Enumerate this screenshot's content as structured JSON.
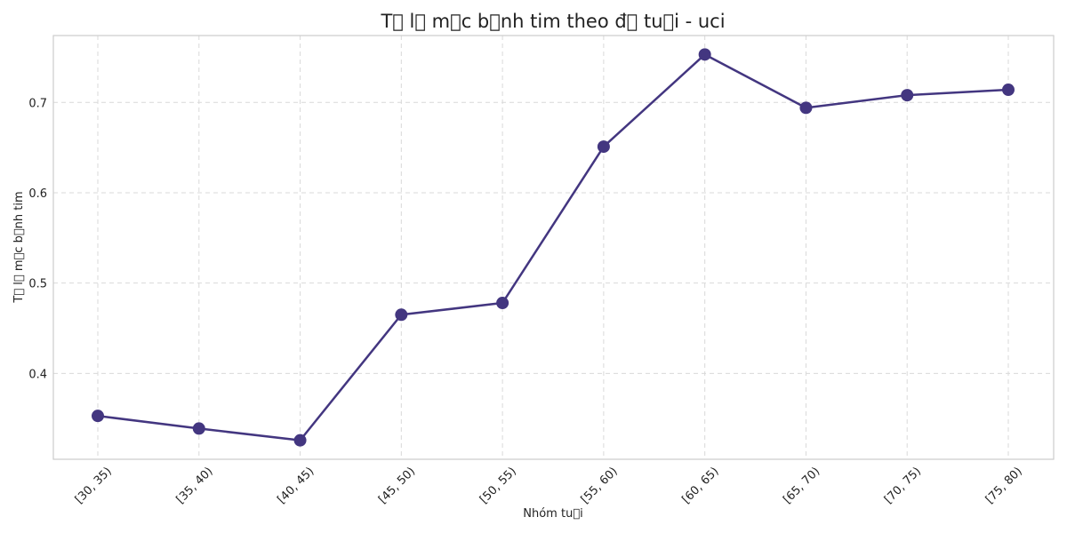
{
  "chart_data": {
    "type": "line",
    "title": "T\u0000 l\u0000 m\u0000c b\u0000nh tim theo đ\u0000 tu\u0000i - uci",
    "xlabel": "Nhóm tu\u0000i",
    "ylabel": "T\u0000 l\u0000 m\u0000c b\u0000nh tim",
    "categories": [
      "[30, 35)",
      "[35, 40)",
      "[40, 45)",
      "[45, 50)",
      "[50, 55)",
      "[55, 60)",
      "[60, 65)",
      "[65, 70)",
      "[70, 75)",
      "[75, 80)"
    ],
    "series": [
      {
        "values": [
          0.353,
          0.339,
          0.326,
          0.465,
          0.478,
          0.651,
          0.753,
          0.694,
          0.708,
          0.714
        ]
      }
    ],
    "yticks": [
      "0.4",
      "0.5",
      "0.6",
      "0.7"
    ],
    "ylim": [
      0.305,
      0.774
    ],
    "grid": true,
    "legend": "none",
    "colors": {
      "line": "#433680",
      "marker": "#433680",
      "grid": "#d9d9d9",
      "frame": "#cccccc"
    }
  }
}
